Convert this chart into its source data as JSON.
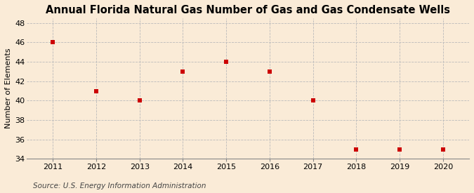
{
  "title": "Annual Florida Natural Gas Number of Gas and Gas Condensate Wells",
  "ylabel": "Number of Elements",
  "source": "Source: U.S. Energy Information Administration",
  "years": [
    2011,
    2012,
    2013,
    2014,
    2015,
    2016,
    2017,
    2018,
    2019,
    2020
  ],
  "values": [
    46,
    41,
    40,
    43,
    44,
    43,
    40,
    35,
    35,
    35
  ],
  "xlim": [
    2010.4,
    2020.6
  ],
  "ylim": [
    34,
    48.5
  ],
  "yticks": [
    34,
    36,
    38,
    40,
    42,
    44,
    46,
    48
  ],
  "xticks": [
    2011,
    2012,
    2013,
    2014,
    2015,
    2016,
    2017,
    2018,
    2019,
    2020
  ],
  "marker_color": "#cc0000",
  "marker": "s",
  "marker_size": 4,
  "grid_color": "#bbbbbb",
  "background_color": "#faebd7",
  "title_fontsize": 10.5,
  "label_fontsize": 8,
  "tick_fontsize": 8,
  "source_fontsize": 7.5
}
